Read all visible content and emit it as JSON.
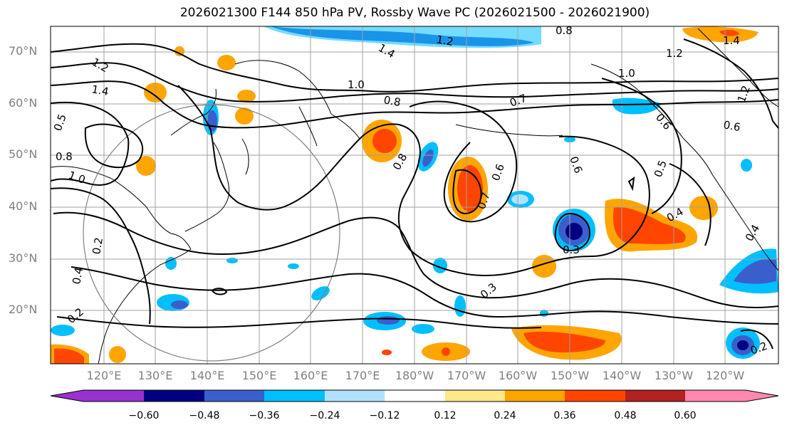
{
  "title": "2026021300 F144 850 hPa PV, Rossby Wave PC (2026021500 - 2026021900)",
  "lat_labels": [
    "70°N",
    "60°N",
    "50°N",
    "40°N",
    "30°N",
    "20°N"
  ],
  "lon_labels": [
    "120°E",
    "130°E",
    "140°E",
    "150°E",
    "160°E",
    "170°E",
    "180°W",
    "170°W",
    "160°W",
    "150°W",
    "140°W",
    "130°W",
    "120°W"
  ],
  "colorbar": {
    "ticks": [
      "−0.60",
      "−0.48",
      "−0.36",
      "−0.24",
      "−0.12",
      "0.12",
      "0.24",
      "0.36",
      "0.48",
      "0.60"
    ],
    "colors": [
      "#9932cc",
      "#000080",
      "#3a5fcd",
      "#00bfff",
      "#b0e2ff",
      "#ffffff",
      "#ffe78a",
      "#ffa500",
      "#ff4500",
      "#b22222",
      "#ff88b0"
    ]
  },
  "contour_labels": [
    "0.8",
    "1.2",
    "1.4",
    "1.2",
    "1.4",
    "1.2",
    "1.4",
    "1.0",
    "0.8",
    "0.7",
    "1.0",
    "1.2",
    "0.6",
    "0.6",
    "0.5",
    "0.8",
    "1.0",
    "0.8",
    "0.6",
    "0.7",
    "0.6",
    "0.5",
    "0.4",
    "0.3",
    "0.3",
    "0.4",
    "0.2",
    "0.4",
    "0.2",
    "0.2"
  ]
}
